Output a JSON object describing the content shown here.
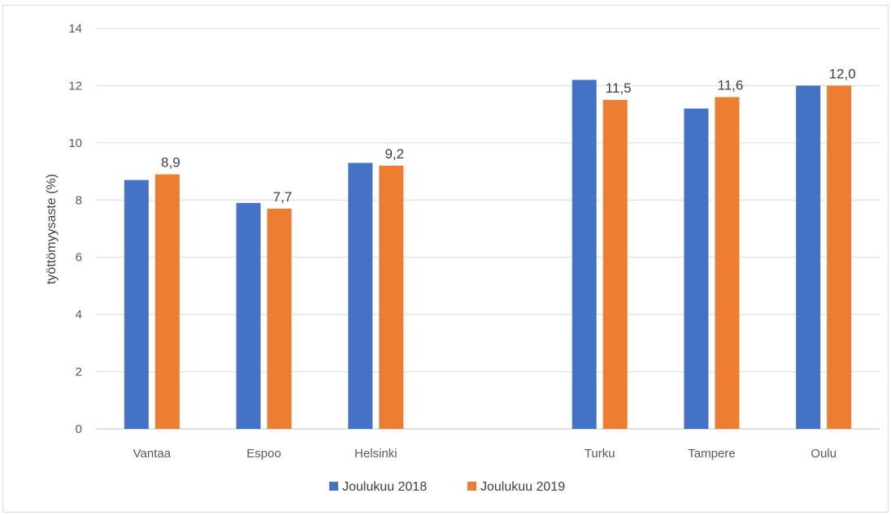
{
  "chart_data": {
    "type": "bar",
    "title": "",
    "xlabel": "",
    "ylabel": "työttömyysaste (%)",
    "ylim": [
      0,
      14
    ],
    "yticks": [
      "0",
      "2",
      "4",
      "6",
      "8",
      "10",
      "12",
      "14"
    ],
    "grid": true,
    "legend_position": "bottom",
    "groups": [
      {
        "category": "Vantaa"
      },
      {
        "category": "Espoo"
      },
      {
        "category": "Helsinki"
      },
      {
        "category": ""
      },
      {
        "category": "Turku"
      },
      {
        "category": "Tampere"
      },
      {
        "category": "Oulu"
      }
    ],
    "categories": [
      "Vantaa",
      "Espoo",
      "Helsinki",
      "",
      "Turku",
      "Tampere",
      "Oulu"
    ],
    "series": [
      {
        "name": "Joulukuu 2018",
        "color": "#4472c4",
        "values": [
          8.7,
          7.9,
          9.3,
          null,
          12.2,
          11.2,
          12.0
        ],
        "labels": [
          "",
          "",
          "",
          "",
          "",
          "",
          ""
        ]
      },
      {
        "name": "Joulukuu 2019",
        "color": "#ed7d31",
        "values": [
          8.9,
          7.7,
          9.2,
          null,
          11.5,
          11.6,
          12.0
        ],
        "labels": [
          "8,9",
          "7,7",
          "9,2",
          "",
          "11,5",
          "11,6",
          "12,0"
        ]
      }
    ],
    "colors": {
      "grid": "#d9d9d9",
      "axis": "#bfbfbf"
    }
  }
}
